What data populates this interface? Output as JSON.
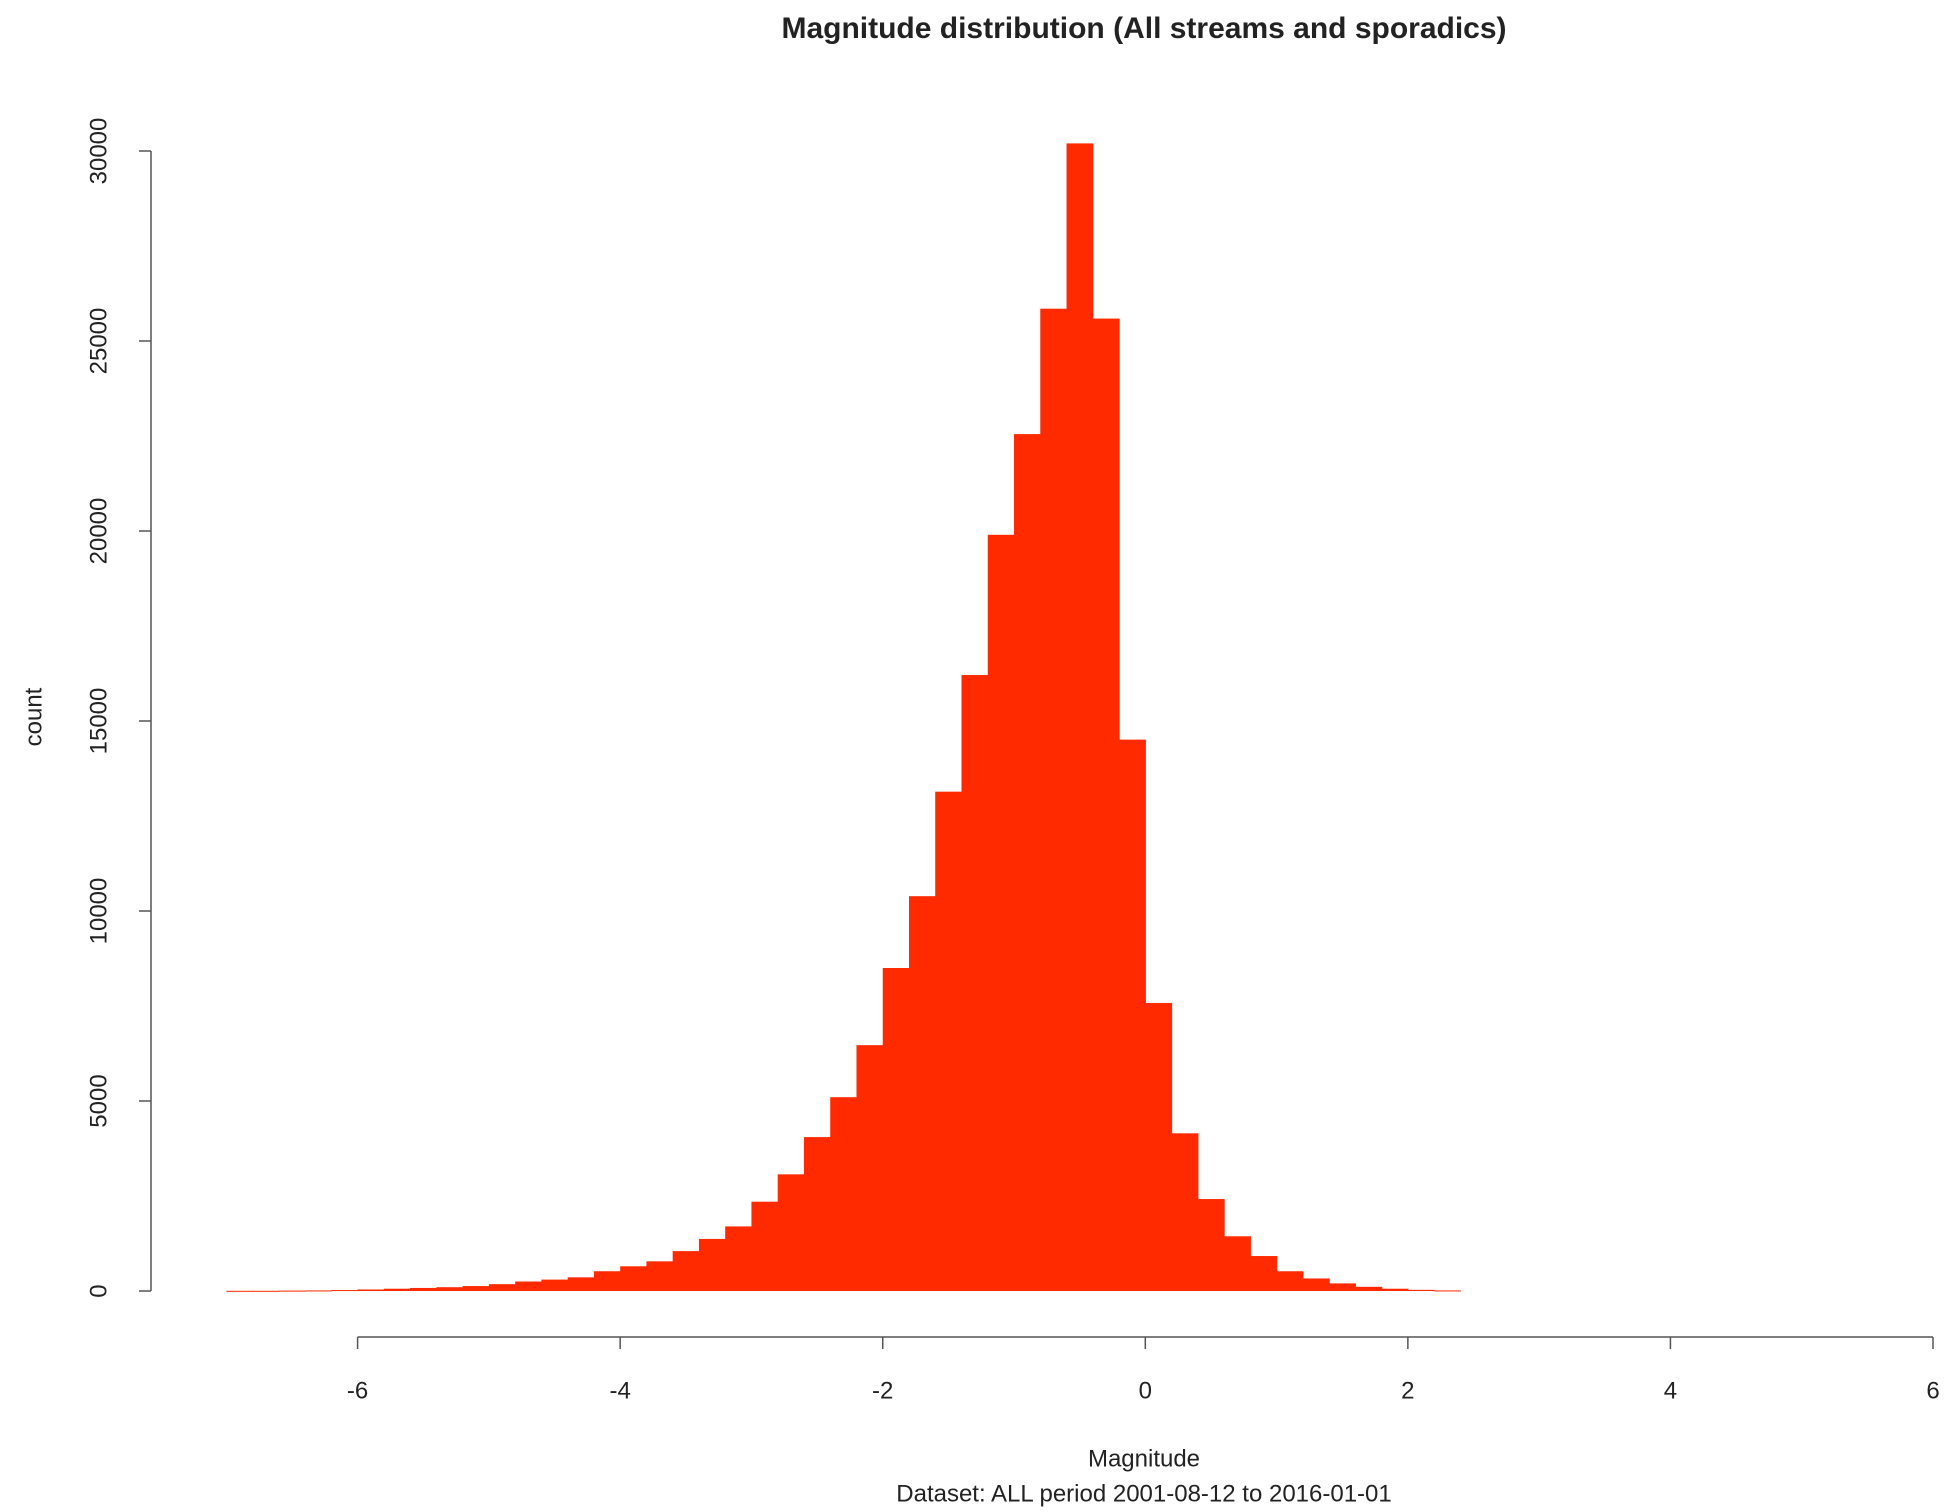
{
  "chart_data": {
    "type": "histogram",
    "title": "Magnitude distribution (All streams and sporadics)",
    "x_label": "Magnitude",
    "subtitle": "Dataset: ALL period 2001-08-12 to 2016-01-01",
    "y_label": "count",
    "color": "#ff2a00",
    "bins": [
      -7.0,
      -6.8,
      -6.6,
      -6.4,
      -6.2,
      -6.0,
      -5.8,
      -5.6,
      -5.4,
      -5.2,
      -5.0,
      -4.8,
      -4.6,
      -4.4,
      -4.2,
      -4.0,
      -3.8,
      -3.6,
      -3.4,
      -3.2,
      -3.0,
      -2.8,
      -2.6,
      -2.4,
      -2.2,
      -2.0,
      -1.8,
      -1.6,
      -1.4,
      -1.2,
      -1.0,
      -0.8,
      -0.6,
      -0.4,
      -0.2,
      0.0,
      0.2,
      0.4,
      0.6,
      0.8,
      1.0,
      1.2,
      1.4,
      1.6,
      1.8,
      2.0,
      2.2,
      2.4
    ],
    "values": [
      5,
      5,
      10,
      15,
      25,
      40,
      60,
      80,
      100,
      130,
      180,
      250,
      300,
      360,
      520,
      650,
      780,
      1050,
      1370,
      1700,
      2350,
      3070,
      4050,
      5100,
      6470,
      8500,
      10390,
      13140,
      16210,
      19900,
      22550,
      25850,
      30200,
      25590,
      14510,
      7580,
      4150,
      2420,
      1440,
      920,
      520,
      330,
      200,
      110,
      60,
      30,
      15
    ],
    "xlim": [
      -6,
      6
    ],
    "xticks": [
      -6,
      -4,
      -2,
      0,
      2,
      4,
      6
    ],
    "ylim": [
      0,
      30000
    ],
    "yticks": [
      0,
      5000,
      10000,
      15000,
      20000,
      25000,
      30000
    ],
    "grid": false
  }
}
